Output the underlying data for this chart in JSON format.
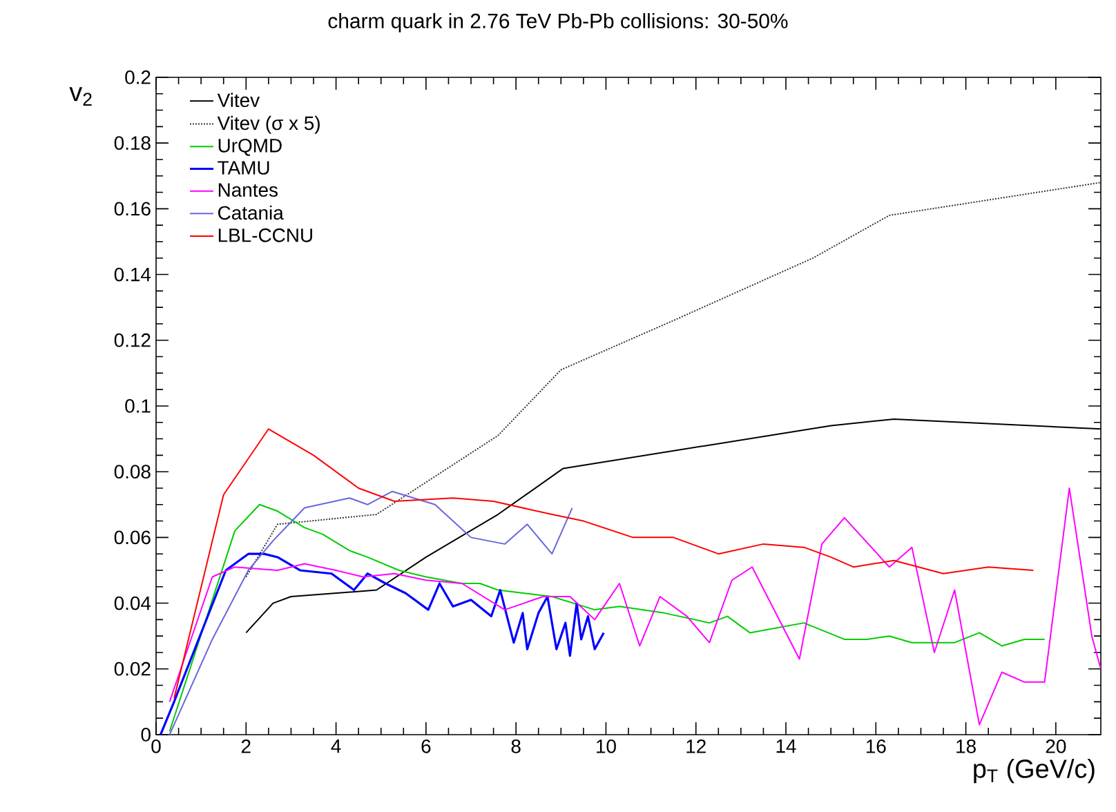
{
  "chart_data": {
    "type": "line",
    "title": "charm quark in 2.76 TeV Pb-Pb collisions: 30-50%",
    "xlabel": "p$_{T}$ (GeV/c)",
    "ylabel": "v$_{2}$",
    "xlim": [
      0,
      21
    ],
    "ylim": [
      0,
      0.2
    ],
    "xticks": [
      0,
      2,
      4,
      6,
      8,
      10,
      12,
      14,
      16,
      18,
      20
    ],
    "yticks": [
      0,
      {
        "value": 0.02,
        "label": "0.02"
      },
      {
        "value": 0.04,
        "label": "0.04"
      },
      {
        "value": 0.06,
        "label": "0.06"
      },
      {
        "value": 0.08,
        "label": "0.08"
      },
      0.1,
      {
        "value": 0.12,
        "label": "0.12"
      },
      {
        "value": 0.14,
        "label": "0.14"
      },
      {
        "value": 0.16,
        "label": "0.16"
      },
      {
        "value": 0.18,
        "label": "0.18"
      },
      0.2
    ],
    "grid": false,
    "legend": "top left",
    "marker": "none",
    "series": [
      {
        "name": "Vitev",
        "color": "#000000",
        "line_style": "solid",
        "x": [
          2.0,
          2.6,
          3.0,
          4.9,
          6.0,
          7.6,
          9.05,
          15.0,
          16.4,
          21
        ],
        "values": [
          0.031,
          0.04,
          0.042,
          0.044,
          0.054,
          0.067,
          0.081,
          0.094,
          0.096,
          0.093
        ]
      },
      {
        "name": "Vitev (σ x 5)",
        "color": "#333333",
        "line_style": "dotted",
        "x": [
          2.0,
          2.7,
          4.9,
          7.6,
          9.0,
          11.5,
          14.6,
          16.3,
          21
        ],
        "values": [
          0.048,
          0.064,
          0.067,
          0.091,
          0.111,
          0.126,
          0.145,
          0.158,
          0.168
        ]
      },
      {
        "name": "UrQMD",
        "color": "#00cc00",
        "line_style": "solid",
        "x": [
          0.3,
          1.75,
          2.3,
          2.7,
          3.3,
          3.7,
          4.3,
          4.7,
          5.4,
          6.0,
          6.8,
          7.2,
          7.6,
          8.8,
          9.75,
          10.3,
          11.3,
          12.3,
          12.7,
          13.2,
          14.4,
          15.3,
          15.8,
          16.3,
          16.8,
          17.75,
          18.3,
          18.8,
          19.3,
          19.75
        ],
        "values": [
          0.001,
          0.062,
          0.07,
          0.068,
          0.063,
          0.061,
          0.056,
          0.054,
          0.05,
          0.048,
          0.046,
          0.046,
          0.044,
          0.042,
          0.038,
          0.039,
          0.037,
          0.034,
          0.036,
          0.031,
          0.034,
          0.029,
          0.029,
          0.03,
          0.028,
          0.028,
          0.031,
          0.027,
          0.029,
          0.029
        ]
      },
      {
        "name": "TAMU",
        "color": "#0000ff",
        "line_style": "solid",
        "x": [
          0.1,
          0.4,
          1.55,
          2.05,
          2.4,
          2.7,
          3.2,
          3.9,
          4.4,
          4.7,
          5.1,
          5.55,
          6.05,
          6.3,
          6.6,
          7.0,
          7.45,
          7.65,
          7.95,
          8.15,
          8.25,
          8.5,
          8.7,
          8.9,
          9.1,
          9.2,
          9.35,
          9.45,
          9.6,
          9.75,
          9.95
        ],
        "values": [
          0.0,
          0.01,
          0.05,
          0.055,
          0.055,
          0.054,
          0.05,
          0.049,
          0.044,
          0.049,
          0.046,
          0.043,
          0.038,
          0.046,
          0.039,
          0.041,
          0.036,
          0.044,
          0.028,
          0.037,
          0.026,
          0.037,
          0.042,
          0.026,
          0.034,
          0.024,
          0.04,
          0.029,
          0.036,
          0.026,
          0.031
        ]
      },
      {
        "name": "Nantes",
        "color": "#ff00ff",
        "line_style": "solid",
        "x": [
          0.3,
          1.25,
          1.75,
          2.7,
          3.3,
          4.0,
          4.6,
          5.3,
          6.0,
          6.8,
          7.75,
          8.6,
          9.2,
          9.75,
          10.3,
          10.75,
          11.2,
          11.8,
          12.3,
          12.8,
          13.25,
          14.3,
          14.8,
          15.3,
          16.3,
          16.8,
          17.3,
          17.75,
          18.3,
          18.8,
          19.3,
          19.75,
          20.3,
          20.8,
          21
        ],
        "values": [
          0.01,
          0.048,
          0.051,
          0.05,
          0.052,
          0.05,
          0.048,
          0.049,
          0.047,
          0.046,
          0.038,
          0.042,
          0.042,
          0.035,
          0.046,
          0.027,
          0.042,
          0.036,
          0.028,
          0.047,
          0.051,
          0.023,
          0.058,
          0.066,
          0.051,
          0.057,
          0.025,
          0.044,
          0.003,
          0.019,
          0.016,
          0.016,
          0.075,
          0.03,
          0.02
        ]
      },
      {
        "name": "Catania",
        "color": "#6666dd",
        "line_style": "solid",
        "x": [
          0.3,
          1.25,
          2.05,
          2.6,
          3.3,
          4.3,
          4.7,
          5.25,
          6.2,
          7.0,
          7.75,
          8.25,
          8.8,
          9.25
        ],
        "values": [
          0.0,
          0.029,
          0.05,
          0.059,
          0.069,
          0.072,
          0.07,
          0.074,
          0.07,
          0.06,
          0.058,
          0.064,
          0.055,
          0.069
        ]
      },
      {
        "name": "LBL-CCNU",
        "color": "#ff0000",
        "line_style": "solid",
        "x": [
          0.4,
          1.5,
          2.5,
          3.5,
          4.5,
          5.3,
          6.6,
          7.5,
          8.8,
          9.5,
          10.6,
          11.5,
          12.5,
          13.5,
          14.4,
          15.0,
          15.5,
          16.4,
          17.5,
          18.5,
          19.5
        ],
        "values": [
          0.011,
          0.073,
          0.093,
          0.085,
          0.075,
          0.071,
          0.072,
          0.071,
          0.067,
          0.065,
          0.06,
          0.06,
          0.055,
          0.058,
          0.057,
          0.054,
          0.051,
          0.053,
          0.049,
          0.051,
          0.05
        ]
      }
    ]
  }
}
